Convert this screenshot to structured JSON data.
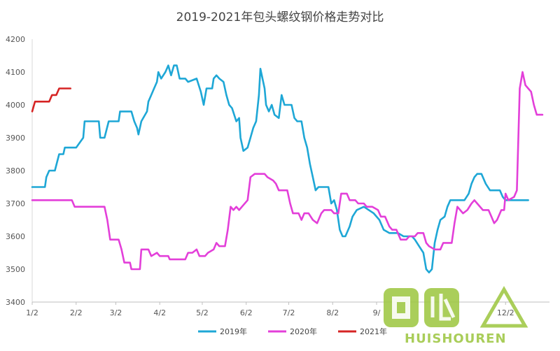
{
  "chart_data": {
    "type": "line",
    "title": "2019-2021年包头螺纹钢价格走势对比",
    "xlabel": "",
    "ylabel": "",
    "ylim": [
      3400,
      4200
    ],
    "yticks": [
      3400,
      3500,
      3600,
      3700,
      3800,
      3900,
      4000,
      4100,
      4200
    ],
    "x_axis": {
      "type": "month-day",
      "range_days": [
        0,
        365
      ],
      "ticks": [
        {
          "label": "1/2",
          "day": 0
        },
        {
          "label": "2/2",
          "day": 31
        },
        {
          "label": "3/2",
          "day": 59
        },
        {
          "label": "4/2",
          "day": 90
        },
        {
          "label": "5/2",
          "day": 120
        },
        {
          "label": "6/2",
          "day": 151
        },
        {
          "label": "7/2",
          "day": 181
        },
        {
          "label": "8/2",
          "day": 212
        },
        {
          "label": "9/",
          "day": 243
        },
        {
          "label": "12/2",
          "day": 334
        }
      ]
    },
    "grid": false,
    "legend": "bottom",
    "series": [
      {
        "name": "2019年",
        "color": "#1ea7d6",
        "points": [
          [
            0,
            3750
          ],
          [
            9,
            3750
          ],
          [
            10,
            3780
          ],
          [
            12,
            3800
          ],
          [
            16,
            3800
          ],
          [
            19,
            3850
          ],
          [
            22,
            3850
          ],
          [
            23,
            3870
          ],
          [
            31,
            3870
          ],
          [
            36,
            3900
          ],
          [
            37,
            3950
          ],
          [
            47,
            3950
          ],
          [
            48,
            3900
          ],
          [
            51,
            3900
          ],
          [
            54,
            3950
          ],
          [
            61,
            3950
          ],
          [
            62,
            3980
          ],
          [
            70,
            3980
          ],
          [
            72,
            3950
          ],
          [
            74,
            3930
          ],
          [
            75,
            3910
          ],
          [
            77,
            3950
          ],
          [
            81,
            3980
          ],
          [
            82,
            4010
          ],
          [
            84,
            4030
          ],
          [
            86,
            4050
          ],
          [
            88,
            4070
          ],
          [
            89,
            4100
          ],
          [
            91,
            4080
          ],
          [
            94,
            4100
          ],
          [
            96,
            4120
          ],
          [
            98,
            4090
          ],
          [
            100,
            4120
          ],
          [
            102,
            4120
          ],
          [
            104,
            4080
          ],
          [
            108,
            4080
          ],
          [
            110,
            4070
          ],
          [
            116,
            4080
          ],
          [
            119,
            4040
          ],
          [
            121,
            4000
          ],
          [
            123,
            4050
          ],
          [
            127,
            4050
          ],
          [
            128,
            4080
          ],
          [
            130,
            4090
          ],
          [
            132,
            4080
          ],
          [
            135,
            4070
          ],
          [
            137,
            4030
          ],
          [
            139,
            4000
          ],
          [
            141,
            3990
          ],
          [
            144,
            3950
          ],
          [
            146,
            3960
          ],
          [
            147,
            3900
          ],
          [
            149,
            3860
          ],
          [
            152,
            3870
          ],
          [
            154,
            3900
          ],
          [
            156,
            3930
          ],
          [
            158,
            3950
          ],
          [
            160,
            4030
          ],
          [
            161,
            4110
          ],
          [
            164,
            4050
          ],
          [
            165,
            4000
          ],
          [
            167,
            3980
          ],
          [
            169,
            4000
          ],
          [
            171,
            3970
          ],
          [
            174,
            3960
          ],
          [
            176,
            4030
          ],
          [
            178,
            4000
          ],
          [
            183,
            4000
          ],
          [
            185,
            3960
          ],
          [
            187,
            3950
          ],
          [
            190,
            3950
          ],
          [
            192,
            3900
          ],
          [
            194,
            3870
          ],
          [
            196,
            3820
          ],
          [
            198,
            3780
          ],
          [
            200,
            3740
          ],
          [
            202,
            3750
          ],
          [
            209,
            3750
          ],
          [
            211,
            3700
          ],
          [
            213,
            3710
          ],
          [
            215,
            3680
          ],
          [
            217,
            3620
          ],
          [
            219,
            3600
          ],
          [
            221,
            3600
          ],
          [
            224,
            3630
          ],
          [
            226,
            3660
          ],
          [
            229,
            3680
          ],
          [
            234,
            3690
          ],
          [
            241,
            3670
          ],
          [
            245,
            3650
          ],
          [
            248,
            3620
          ],
          [
            252,
            3610
          ],
          [
            258,
            3610
          ],
          [
            262,
            3600
          ],
          [
            268,
            3600
          ],
          [
            270,
            3590
          ],
          [
            273,
            3570
          ],
          [
            276,
            3550
          ],
          [
            278,
            3500
          ],
          [
            280,
            3490
          ],
          [
            282,
            3500
          ],
          [
            284,
            3580
          ],
          [
            286,
            3620
          ],
          [
            288,
            3650
          ],
          [
            291,
            3660
          ],
          [
            293,
            3690
          ],
          [
            295,
            3710
          ],
          [
            305,
            3710
          ],
          [
            308,
            3730
          ],
          [
            310,
            3760
          ],
          [
            312,
            3780
          ],
          [
            314,
            3790
          ],
          [
            317,
            3790
          ],
          [
            320,
            3760
          ],
          [
            323,
            3740
          ],
          [
            330,
            3740
          ],
          [
            332,
            3720
          ],
          [
            334,
            3710
          ],
          [
            350,
            3710
          ]
        ]
      },
      {
        "name": "2020年",
        "color": "#e33fd9",
        "points": [
          [
            0,
            3710
          ],
          [
            28,
            3710
          ],
          [
            30,
            3690
          ],
          [
            51,
            3690
          ],
          [
            53,
            3650
          ],
          [
            55,
            3590
          ],
          [
            61,
            3590
          ],
          [
            63,
            3560
          ],
          [
            65,
            3520
          ],
          [
            69,
            3520
          ],
          [
            70,
            3500
          ],
          [
            76,
            3500
          ],
          [
            77,
            3560
          ],
          [
            82,
            3560
          ],
          [
            84,
            3540
          ],
          [
            88,
            3550
          ],
          [
            90,
            3540
          ],
          [
            96,
            3540
          ],
          [
            97,
            3530
          ],
          [
            108,
            3530
          ],
          [
            110,
            3550
          ],
          [
            113,
            3550
          ],
          [
            116,
            3560
          ],
          [
            118,
            3540
          ],
          [
            122,
            3540
          ],
          [
            124,
            3550
          ],
          [
            128,
            3560
          ],
          [
            130,
            3580
          ],
          [
            132,
            3570
          ],
          [
            136,
            3570
          ],
          [
            138,
            3620
          ],
          [
            140,
            3690
          ],
          [
            142,
            3680
          ],
          [
            144,
            3690
          ],
          [
            146,
            3680
          ],
          [
            148,
            3690
          ],
          [
            152,
            3710
          ],
          [
            154,
            3780
          ],
          [
            157,
            3790
          ],
          [
            164,
            3790
          ],
          [
            166,
            3780
          ],
          [
            170,
            3770
          ],
          [
            172,
            3760
          ],
          [
            174,
            3740
          ],
          [
            180,
            3740
          ],
          [
            182,
            3700
          ],
          [
            184,
            3670
          ],
          [
            188,
            3670
          ],
          [
            190,
            3650
          ],
          [
            192,
            3670
          ],
          [
            195,
            3670
          ],
          [
            198,
            3650
          ],
          [
            201,
            3640
          ],
          [
            204,
            3670
          ],
          [
            206,
            3680
          ],
          [
            211,
            3680
          ],
          [
            213,
            3670
          ],
          [
            216,
            3670
          ],
          [
            218,
            3730
          ],
          [
            222,
            3730
          ],
          [
            224,
            3710
          ],
          [
            228,
            3710
          ],
          [
            230,
            3700
          ],
          [
            234,
            3700
          ],
          [
            236,
            3690
          ],
          [
            240,
            3690
          ],
          [
            244,
            3680
          ],
          [
            246,
            3660
          ],
          [
            249,
            3660
          ],
          [
            252,
            3630
          ],
          [
            254,
            3620
          ],
          [
            257,
            3620
          ],
          [
            260,
            3590
          ],
          [
            264,
            3590
          ],
          [
            266,
            3600
          ],
          [
            270,
            3600
          ],
          [
            272,
            3610
          ],
          [
            276,
            3610
          ],
          [
            278,
            3580
          ],
          [
            280,
            3570
          ],
          [
            284,
            3560
          ],
          [
            288,
            3560
          ],
          [
            290,
            3580
          ],
          [
            296,
            3580
          ],
          [
            298,
            3640
          ],
          [
            300,
            3690
          ],
          [
            302,
            3680
          ],
          [
            304,
            3670
          ],
          [
            307,
            3680
          ],
          [
            310,
            3700
          ],
          [
            312,
            3710
          ],
          [
            314,
            3700
          ],
          [
            318,
            3680
          ],
          [
            322,
            3680
          ],
          [
            324,
            3660
          ],
          [
            326,
            3640
          ],
          [
            328,
            3650
          ],
          [
            331,
            3680
          ],
          [
            333,
            3680
          ],
          [
            334,
            3730
          ],
          [
            336,
            3710
          ],
          [
            340,
            3720
          ],
          [
            342,
            3740
          ],
          [
            344,
            4050
          ],
          [
            346,
            4100
          ],
          [
            348,
            4060
          ],
          [
            350,
            4050
          ],
          [
            352,
            4040
          ],
          [
            354,
            4000
          ],
          [
            356,
            3970
          ],
          [
            360,
            3970
          ]
        ]
      },
      {
        "name": "2021年",
        "color": "#d62424",
        "points": [
          [
            0,
            3980
          ],
          [
            2,
            4010
          ],
          [
            12,
            4010
          ],
          [
            14,
            4030
          ],
          [
            17,
            4030
          ],
          [
            19,
            4050
          ],
          [
            27,
            4050
          ]
        ]
      }
    ]
  },
  "watermark": {
    "text": "HUISHOUREN",
    "color": "#9bc53d"
  }
}
